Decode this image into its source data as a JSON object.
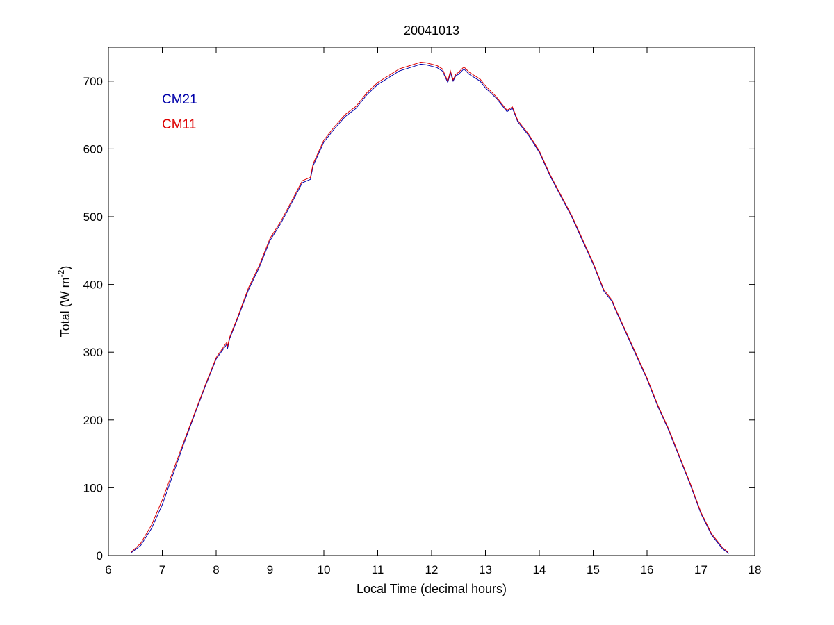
{
  "chart_data": {
    "type": "line",
    "title": "20041013",
    "xlabel": "Local Time (decimal hours)",
    "ylabel_main": "Total (W m",
    "ylabel_sup": "-2",
    "ylabel_close": ")",
    "xlim": [
      6,
      18
    ],
    "ylim": [
      0,
      750
    ],
    "xticks": [
      6,
      7,
      8,
      9,
      10,
      11,
      12,
      13,
      14,
      15,
      16,
      17,
      18
    ],
    "yticks": [
      0,
      100,
      200,
      300,
      400,
      500,
      600,
      700
    ],
    "grid": false,
    "legend_position": "top-left",
    "series": [
      {
        "name": "CM21",
        "color": "#0000aa",
        "x": [
          6.42,
          6.6,
          6.8,
          7.0,
          7.2,
          7.4,
          7.6,
          7.8,
          8.0,
          8.2,
          8.21,
          8.25,
          8.4,
          8.6,
          8.8,
          9.0,
          9.2,
          9.4,
          9.6,
          9.75,
          9.8,
          10.0,
          10.2,
          10.4,
          10.6,
          10.8,
          11.0,
          11.2,
          11.4,
          11.6,
          11.8,
          11.9,
          12.0,
          12.1,
          12.2,
          12.3,
          12.35,
          12.4,
          12.45,
          12.5,
          12.6,
          12.7,
          12.8,
          12.9,
          13.0,
          13.2,
          13.4,
          13.5,
          13.6,
          13.8,
          14.0,
          14.2,
          14.4,
          14.6,
          14.8,
          15.0,
          15.2,
          15.35,
          15.4,
          15.6,
          15.8,
          16.0,
          16.2,
          16.4,
          16.6,
          16.8,
          17.0,
          17.2,
          17.4,
          17.52
        ],
        "y": [
          4,
          15,
          40,
          75,
          120,
          165,
          208,
          250,
          290,
          312,
          305,
          320,
          350,
          392,
          425,
          465,
          490,
          520,
          550,
          555,
          575,
          610,
          630,
          648,
          660,
          680,
          695,
          705,
          715,
          720,
          725,
          724,
          722,
          720,
          715,
          698,
          712,
          700,
          708,
          710,
          718,
          710,
          705,
          700,
          690,
          675,
          655,
          660,
          640,
          620,
          595,
          560,
          530,
          500,
          465,
          430,
          390,
          375,
          365,
          330,
          295,
          260,
          220,
          185,
          145,
          105,
          62,
          30,
          10,
          3
        ]
      },
      {
        "name": "CM11",
        "color": "#dd0000",
        "x": [
          6.42,
          6.6,
          6.8,
          7.0,
          7.2,
          7.4,
          7.6,
          7.8,
          8.0,
          8.2,
          8.21,
          8.25,
          8.4,
          8.6,
          8.8,
          9.0,
          9.2,
          9.4,
          9.6,
          9.75,
          9.8,
          10.0,
          10.2,
          10.4,
          10.6,
          10.8,
          11.0,
          11.2,
          11.4,
          11.6,
          11.8,
          11.9,
          12.0,
          12.1,
          12.2,
          12.3,
          12.35,
          12.4,
          12.45,
          12.5,
          12.6,
          12.7,
          12.8,
          12.9,
          13.0,
          13.2,
          13.4,
          13.5,
          13.6,
          13.8,
          14.0,
          14.2,
          14.4,
          14.6,
          14.8,
          15.0,
          15.2,
          15.35,
          15.4,
          15.6,
          15.8,
          16.0,
          16.2,
          16.4,
          16.6,
          16.8,
          17.0,
          17.2,
          17.4,
          17.5
        ],
        "y": [
          5,
          18,
          45,
          82,
          125,
          168,
          210,
          252,
          292,
          315,
          308,
          322,
          352,
          395,
          428,
          468,
          493,
          523,
          553,
          558,
          578,
          613,
          633,
          651,
          663,
          683,
          698,
          708,
          718,
          723,
          728,
          727,
          725,
          723,
          718,
          700,
          715,
          702,
          710,
          713,
          721,
          713,
          708,
          703,
          693,
          677,
          657,
          662,
          642,
          622,
          597,
          562,
          532,
          502,
          467,
          432,
          392,
          377,
          367,
          332,
          297,
          262,
          222,
          187,
          147,
          107,
          64,
          32,
          12,
          5
        ]
      }
    ]
  }
}
